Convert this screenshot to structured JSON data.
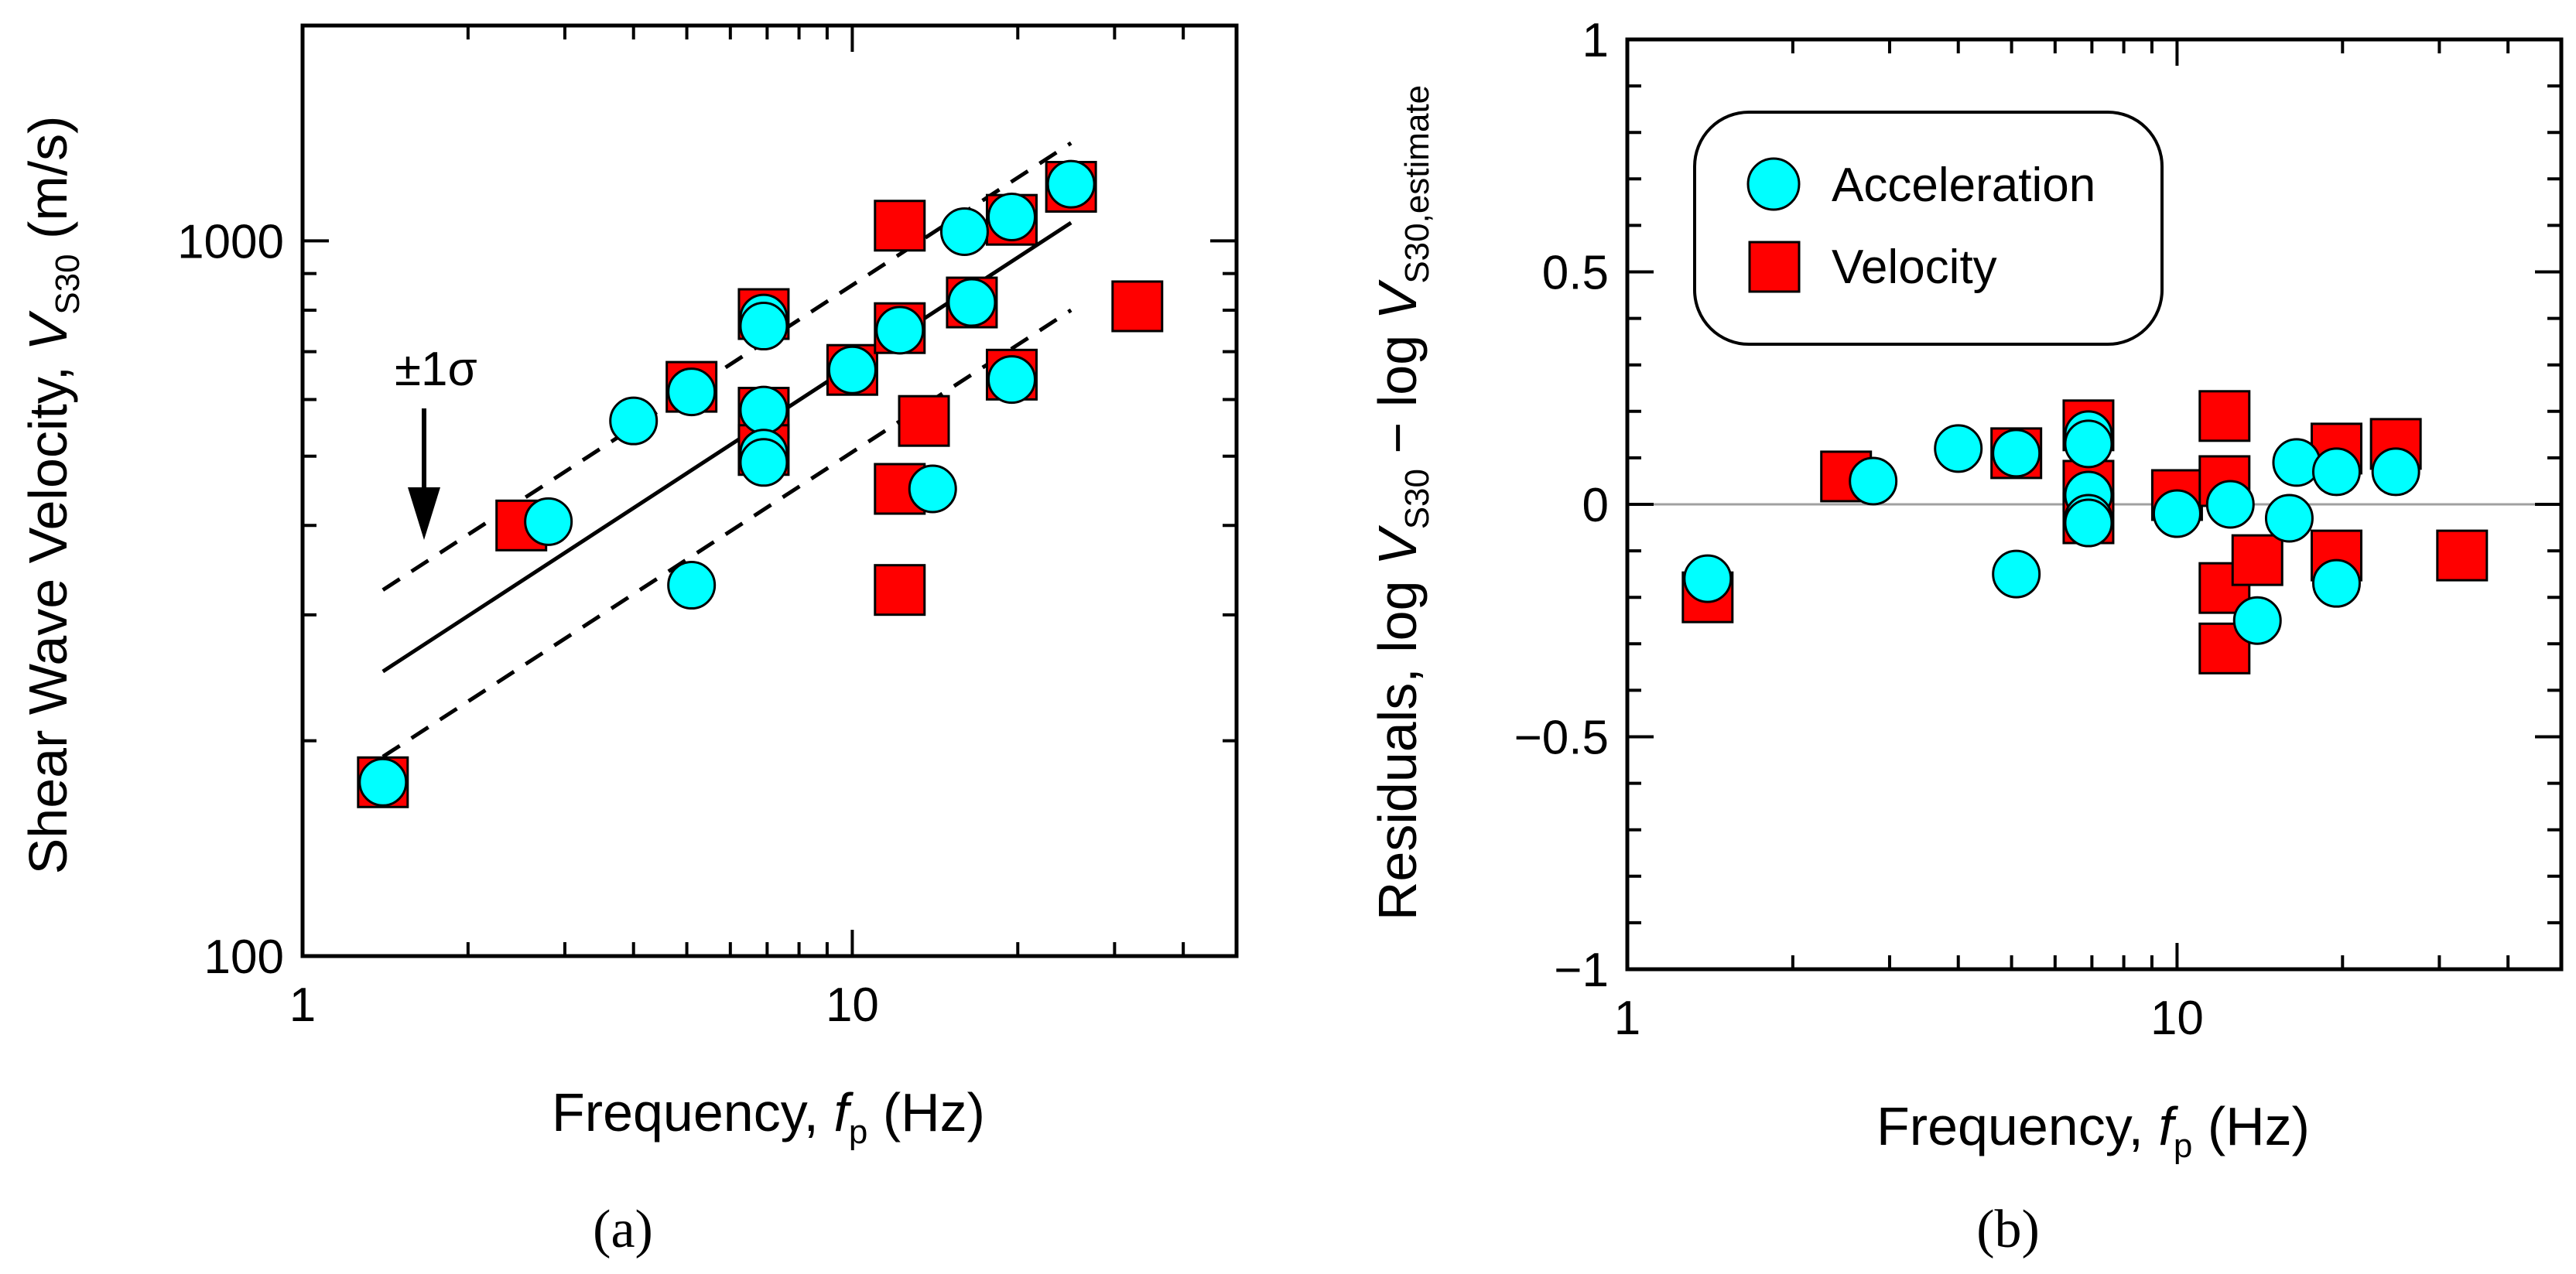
{
  "chart_data": [
    {
      "panel_label": "(a)",
      "type": "scatter",
      "xscale": "log",
      "yscale": "log",
      "xlim": [
        1,
        50
      ],
      "ylim": [
        100,
        2000
      ],
      "x_tick_labels": [
        "1",
        "10"
      ],
      "y_tick_labels": [
        "100",
        "1000"
      ],
      "xlabel": {
        "main": "Frequency, ",
        "italic": "f",
        "sub": "p",
        "unit": " (Hz)"
      },
      "ylabel": {
        "main": "Shear Wave Velocity,  ",
        "italic": "V",
        "sub": "S30",
        "unit": " (m/s)"
      },
      "annotation": "±1σ",
      "fit": {
        "x0": 1.4,
        "x1": 25,
        "y0": 250,
        "y1": 1060
      },
      "bands": [
        {
          "x0": 1.4,
          "x1": 25,
          "y0": 325,
          "y1": 1370
        },
        {
          "x0": 1.4,
          "x1": 25,
          "y0": 190,
          "y1": 800
        }
      ],
      "series": [
        {
          "name": "Velocity",
          "marker": "square",
          "color": "#ff0000",
          "points": [
            [
              1.4,
              175
            ],
            [
              2.5,
              400
            ],
            [
              5.1,
              625
            ],
            [
              6.9,
              790
            ],
            [
              6.9,
              575
            ],
            [
              6.9,
              510
            ],
            [
              10,
              660
            ],
            [
              12.2,
              1050
            ],
            [
              12.2,
              755
            ],
            [
              12.2,
              450
            ],
            [
              12.2,
              325
            ],
            [
              13.5,
              560
            ],
            [
              16.5,
              820
            ],
            [
              19.5,
              1070
            ],
            [
              19.5,
              650
            ],
            [
              25,
              1190
            ],
            [
              33,
              810
            ]
          ]
        },
        {
          "name": "Acceleration",
          "marker": "circle",
          "color": "#00ffff",
          "points": [
            [
              1.4,
              175
            ],
            [
              2.8,
              405
            ],
            [
              4.0,
              560
            ],
            [
              5.1,
              615
            ],
            [
              5.1,
              330
            ],
            [
              6.9,
              780
            ],
            [
              6.9,
              760
            ],
            [
              6.9,
              580
            ],
            [
              6.9,
              505
            ],
            [
              6.9,
              490
            ],
            [
              10,
              660
            ],
            [
              12.2,
              750
            ],
            [
              14.0,
              450
            ],
            [
              16.0,
              1030
            ],
            [
              16.5,
              820
            ],
            [
              19.5,
              1080
            ],
            [
              19.5,
              640
            ],
            [
              25,
              1200
            ]
          ]
        }
      ]
    },
    {
      "panel_label": "(b)",
      "type": "scatter",
      "xscale": "log",
      "yscale": "linear",
      "xlim": [
        1,
        50
      ],
      "ylim": [
        -1,
        1
      ],
      "x_tick_labels": [
        "1",
        "10"
      ],
      "y_tick_labels": [
        "1",
        "0.5",
        "0",
        "−0.5",
        "−1"
      ],
      "xlabel": {
        "main": "Frequency, ",
        "italic": "f",
        "sub": "p",
        "unit": " (Hz)"
      },
      "ylabel": {
        "main": "Residuals, log ",
        "italic": "V",
        "sub": "S30",
        "mid": " − log ",
        "italic2": "V",
        "sub2": "S30,estimate"
      },
      "zero_line": 0,
      "legend_position": "top-left",
      "series": [
        {
          "name": "Velocity",
          "marker": "square",
          "color": "#ff0000",
          "points": [
            [
              1.4,
              -0.2
            ],
            [
              2.5,
              0.06
            ],
            [
              5.1,
              0.11
            ],
            [
              6.9,
              0.17
            ],
            [
              6.9,
              0.04
            ],
            [
              6.9,
              -0.03
            ],
            [
              10,
              0.02
            ],
            [
              12.2,
              0.19
            ],
            [
              12.2,
              0.05
            ],
            [
              12.2,
              -0.18
            ],
            [
              12.2,
              -0.31
            ],
            [
              14.0,
              -0.12
            ],
            [
              19.5,
              0.12
            ],
            [
              19.5,
              -0.11
            ],
            [
              25,
              0.13
            ],
            [
              33,
              -0.11
            ]
          ]
        },
        {
          "name": "Acceleration",
          "marker": "circle",
          "color": "#00ffff",
          "points": [
            [
              1.4,
              -0.16
            ],
            [
              2.8,
              0.05
            ],
            [
              4.0,
              0.12
            ],
            [
              5.1,
              0.11
            ],
            [
              5.1,
              -0.15
            ],
            [
              6.9,
              0.15
            ],
            [
              6.9,
              0.13
            ],
            [
              6.9,
              0.02
            ],
            [
              6.9,
              -0.03
            ],
            [
              6.9,
              -0.04
            ],
            [
              10,
              -0.02
            ],
            [
              12.5,
              0.0
            ],
            [
              14.0,
              -0.25
            ],
            [
              16.0,
              -0.03
            ],
            [
              16.5,
              0.09
            ],
            [
              19.5,
              0.07
            ],
            [
              19.5,
              -0.17
            ],
            [
              25,
              0.07
            ]
          ]
        }
      ]
    }
  ],
  "legend": {
    "items": [
      {
        "label": "Acceleration",
        "marker": "circle",
        "color": "#00ffff"
      },
      {
        "label": "Velocity",
        "marker": "square",
        "color": "#ff0000"
      }
    ]
  }
}
